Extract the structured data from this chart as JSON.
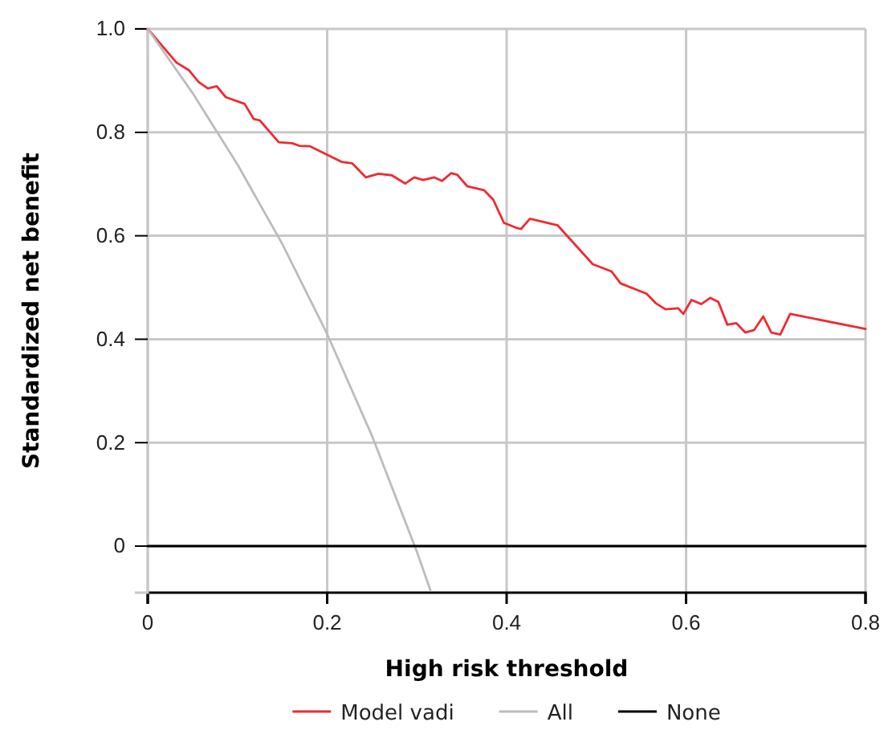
{
  "chart_data": {
    "type": "line",
    "xlabel": "High risk threshold",
    "ylabel": "Standardized net benefit",
    "xlim": [
      0,
      0.8
    ],
    "ylim": [
      -0.09,
      1.0
    ],
    "xticks": [
      0,
      0.2,
      0.4,
      0.6,
      0.8
    ],
    "yticks": [
      0,
      0.2,
      0.4,
      0.6,
      0.8,
      {
        "value": 1.0,
        "label": "1.0"
      }
    ],
    "grid": true,
    "legend": "bottom",
    "marker": "none",
    "line_style": "solid",
    "series": [
      {
        "name": "Model vadi",
        "color": "#ee2b32",
        "x": [
          0,
          0.032,
          0.046,
          0.057,
          0.067,
          0.077,
          0.087,
          0.108,
          0.118,
          0.125,
          0.146,
          0.161,
          0.169,
          0.181,
          0.216,
          0.228,
          0.243,
          0.257,
          0.272,
          0.287,
          0.297,
          0.307,
          0.319,
          0.328,
          0.338,
          0.345,
          0.356,
          0.375,
          0.385,
          0.397,
          0.41,
          0.416,
          0.426,
          0.457,
          0.496,
          0.517,
          0.527,
          0.556,
          0.566,
          0.577,
          0.591,
          0.597,
          0.606,
          0.617,
          0.627,
          0.636,
          0.646,
          0.656,
          0.666,
          0.676,
          0.686,
          0.695,
          0.705,
          0.716,
          0.8
        ],
        "values": [
          1.0,
          0.935,
          0.92,
          0.897,
          0.885,
          0.889,
          0.868,
          0.855,
          0.826,
          0.823,
          0.781,
          0.779,
          0.774,
          0.773,
          0.743,
          0.74,
          0.713,
          0.72,
          0.717,
          0.701,
          0.713,
          0.708,
          0.713,
          0.706,
          0.721,
          0.718,
          0.696,
          0.688,
          0.67,
          0.625,
          0.616,
          0.613,
          0.633,
          0.62,
          0.545,
          0.531,
          0.508,
          0.488,
          0.47,
          0.458,
          0.46,
          0.449,
          0.476,
          0.468,
          0.48,
          0.472,
          0.428,
          0.431,
          0.413,
          0.418,
          0.444,
          0.413,
          0.409,
          0.449,
          0.42
        ]
      },
      {
        "name": "All",
        "color": "#bcbcbc",
        "x": [
          0,
          0.05,
          0.1,
          0.15,
          0.2,
          0.25,
          0.3,
          0.315
        ],
        "values": [
          1.0,
          0.876,
          0.738,
          0.584,
          0.41,
          0.213,
          -0.011,
          -0.085
        ]
      },
      {
        "name": "None",
        "color": "#000000",
        "x": [
          0,
          0.8
        ],
        "values": [
          0,
          0
        ]
      }
    ]
  }
}
